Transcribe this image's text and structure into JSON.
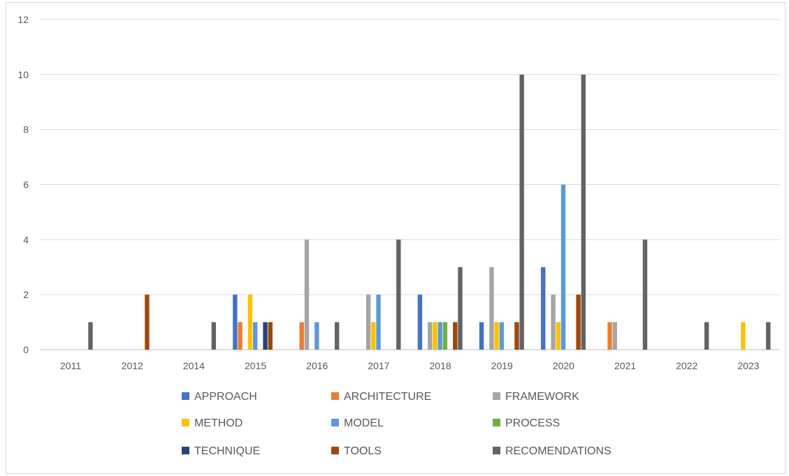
{
  "chart_data": {
    "type": "bar",
    "title": "",
    "xlabel": "",
    "ylabel": "",
    "ylim": [
      0,
      12
    ],
    "yticks": [
      0,
      2,
      4,
      6,
      8,
      10,
      12
    ],
    "grid": true,
    "legend_position": "bottom",
    "categories": [
      "2011",
      "2012",
      "2014",
      "2015",
      "2016",
      "2017",
      "2018",
      "2019",
      "2020",
      "2021",
      "2022",
      "2023"
    ],
    "series": [
      {
        "name": "APPROACH",
        "color": "#4472c4",
        "values": [
          0,
          0,
          0,
          2,
          0,
          0,
          2,
          1,
          3,
          0,
          0,
          0
        ]
      },
      {
        "name": "ARCHITECTURE",
        "color": "#ed7d31",
        "values": [
          0,
          0,
          0,
          1,
          1,
          0,
          0,
          0,
          0,
          1,
          0,
          0
        ]
      },
      {
        "name": "FRAMEWORK",
        "color": "#a5a5a5",
        "values": [
          0,
          0,
          0,
          0,
          4,
          2,
          1,
          3,
          2,
          1,
          0,
          0
        ]
      },
      {
        "name": "METHOD",
        "color": "#ffc000",
        "values": [
          0,
          0,
          0,
          2,
          0,
          1,
          1,
          1,
          1,
          0,
          0,
          1
        ]
      },
      {
        "name": "MODEL",
        "color": "#5b9bd5",
        "values": [
          0,
          0,
          0,
          1,
          1,
          2,
          1,
          1,
          6,
          0,
          0,
          0
        ]
      },
      {
        "name": "PROCESS",
        "color": "#70ad47",
        "values": [
          0,
          0,
          0,
          0,
          0,
          0,
          1,
          0,
          0,
          0,
          0,
          0
        ]
      },
      {
        "name": "TECHNIQUE",
        "color": "#264478",
        "values": [
          0,
          0,
          0,
          1,
          0,
          0,
          0,
          0,
          0,
          0,
          0,
          0
        ]
      },
      {
        "name": "TOOLS",
        "color": "#9e480e",
        "values": [
          0,
          2,
          0,
          1,
          0,
          0,
          1,
          1,
          2,
          0,
          0,
          0
        ]
      },
      {
        "name": "RECOMENDATIONS",
        "color": "#636363",
        "values": [
          1,
          0,
          1,
          0,
          1,
          4,
          3,
          10,
          10,
          4,
          1,
          1
        ]
      }
    ]
  }
}
